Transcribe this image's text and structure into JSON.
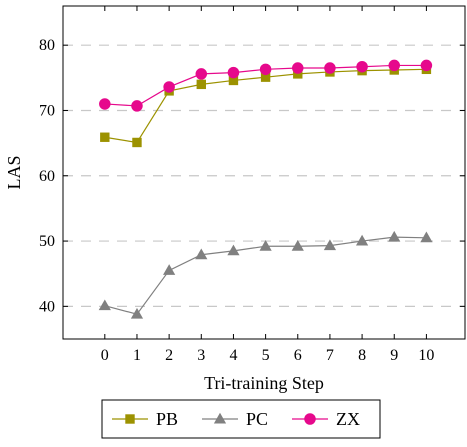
{
  "chart_data": {
    "type": "line",
    "title": "",
    "xlabel": "Tri-training Step",
    "ylabel": "LAS",
    "x": [
      0,
      1,
      2,
      3,
      4,
      5,
      6,
      7,
      8,
      9,
      10
    ],
    "xticks": [
      "0",
      "1",
      "2",
      "3",
      "4",
      "5",
      "6",
      "7",
      "8",
      "9",
      "10"
    ],
    "xlim": [
      -1.3,
      11.2
    ],
    "yticks": [
      40,
      50,
      60,
      70,
      80
    ],
    "ylim": [
      35,
      86
    ],
    "grid": "horizontal dashed",
    "legend_position": "bottom",
    "series": [
      {
        "name": "PB",
        "color": "#9c9200",
        "marker": "square",
        "values": [
          65.9,
          65.1,
          73.0,
          74.0,
          74.6,
          75.1,
          75.6,
          75.9,
          76.1,
          76.2,
          76.3
        ]
      },
      {
        "name": "PC",
        "color": "#808080",
        "marker": "triangle",
        "values": [
          40.1,
          38.8,
          45.5,
          47.9,
          48.5,
          49.2,
          49.2,
          49.3,
          50.0,
          50.6,
          50.5
        ]
      },
      {
        "name": "ZX",
        "color": "#e6098c",
        "marker": "circle",
        "values": [
          71.0,
          70.7,
          73.6,
          75.6,
          75.8,
          76.3,
          76.5,
          76.5,
          76.7,
          76.9,
          76.9
        ]
      }
    ]
  }
}
